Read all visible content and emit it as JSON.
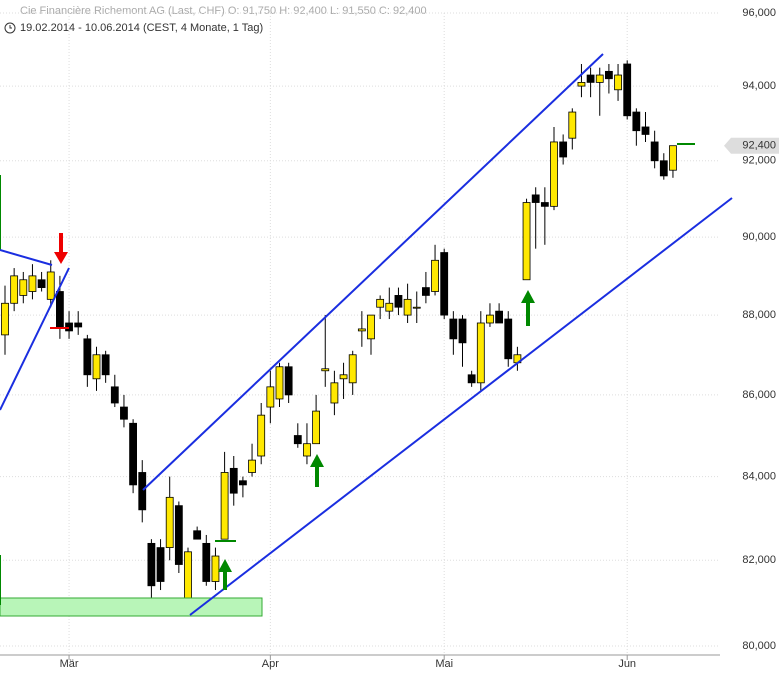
{
  "chart_data": {
    "type": "candlestick",
    "title": "Cie Financière Richemont AG (Last, CHF)  O: 91,750  H: 92,400  L: 91,550  C: 92,400",
    "subtitle": "19.02.2014 - 10.06.2014 (CEST, 4 Monate, 1 Tag)",
    "categories": [
      null,
      null,
      null,
      null,
      null,
      null,
      null,
      "Mär",
      null,
      null,
      null,
      null,
      null,
      null,
      null,
      null,
      null,
      null,
      null,
      null,
      null,
      null,
      null,
      null,
      null,
      null,
      null,
      null,
      null,
      "Apr",
      null,
      null,
      null,
      null,
      null,
      null,
      null,
      null,
      null,
      null,
      null,
      null,
      null,
      null,
      null,
      null,
      null,
      null,
      "Mai",
      null,
      null,
      null,
      null,
      null,
      null,
      null,
      null,
      null,
      null,
      null,
      null,
      null,
      null,
      null,
      null,
      null,
      null,
      null,
      "Jun",
      null,
      null,
      null,
      null,
      null
    ],
    "open": [
      87500,
      88300,
      88500,
      88600,
      88900,
      88400,
      88600,
      87800,
      87800,
      87400,
      86400,
      87000,
      86200,
      85700,
      85300,
      84100,
      82400,
      82300,
      82300,
      83300,
      81000,
      82700,
      82400,
      81500,
      82500,
      84200,
      83900,
      84100,
      84500,
      85700,
      85900,
      86700,
      85000,
      84500,
      84800,
      86600,
      85800,
      86400,
      86300,
      87600,
      87400,
      88200,
      88100,
      88500,
      88000,
      88200,
      88700,
      88600,
      89600,
      87900,
      87900,
      86500,
      86300,
      87800,
      88100,
      87900,
      86800,
      88900,
      91100,
      90900,
      90800,
      92500,
      92600,
      94000,
      94300,
      94100,
      94400,
      93900,
      94600,
      93300,
      92900,
      92500,
      92000,
      91750
    ],
    "high": [
      88750,
      89200,
      89100,
      89300,
      89100,
      89400,
      89000,
      88100,
      88100,
      87500,
      87200,
      87100,
      86500,
      86000,
      85400,
      84400,
      82500,
      82500,
      84000,
      83400,
      82300,
      82800,
      82600,
      82300,
      84600,
      84500,
      84000,
      84800,
      85800,
      86600,
      86800,
      86800,
      85300,
      85300,
      86000,
      88000,
      86600,
      86800,
      87100,
      88100,
      88000,
      88500,
      88700,
      88700,
      88800,
      88600,
      89100,
      89800,
      89700,
      88100,
      88000,
      86600,
      88100,
      88300,
      88300,
      88100,
      87200,
      91000,
      91300,
      91300,
      92900,
      92700,
      93400,
      94600,
      94500,
      94500,
      94600,
      94600,
      94700,
      93400,
      93300,
      92800,
      92200,
      92400
    ],
    "low": [
      87000,
      88100,
      88300,
      88400,
      88600,
      88200,
      87400,
      87400,
      87500,
      86200,
      86100,
      86300,
      85700,
      85200,
      83600,
      82900,
      80800,
      81300,
      82000,
      81700,
      80800,
      82500,
      81400,
      81300,
      82500,
      83300,
      83500,
      84000,
      84300,
      85300,
      85700,
      85800,
      84700,
      84300,
      84800,
      86200,
      85500,
      85900,
      86000,
      87200,
      87000,
      87900,
      87900,
      88000,
      87800,
      87800,
      88300,
      88500,
      87900,
      87000,
      86700,
      86200,
      86100,
      87700,
      87800,
      86700,
      86600,
      88900,
      89700,
      89800,
      90700,
      91900,
      92300,
      93700,
      93700,
      93200,
      93800,
      93600,
      93100,
      92400,
      92500,
      91800,
      91500,
      91550
    ],
    "close": [
      88300,
      89000,
      88900,
      89000,
      88700,
      89100,
      87700,
      87600,
      87700,
      86500,
      87000,
      86500,
      85800,
      85400,
      83800,
      83200,
      81400,
      81500,
      83500,
      81900,
      82200,
      82500,
      81500,
      82100,
      84100,
      83600,
      83800,
      84400,
      85500,
      86200,
      86700,
      86000,
      84800,
      84800,
      85600,
      86650,
      86300,
      86500,
      87000,
      87650,
      88000,
      88400,
      88300,
      88200,
      88400,
      88200,
      88500,
      89400,
      88000,
      87400,
      87300,
      86300,
      87800,
      88000,
      87800,
      86900,
      87000,
      90900,
      90900,
      90800,
      92500,
      92100,
      93300,
      94100,
      94100,
      94300,
      94200,
      94300,
      93200,
      92800,
      92700,
      92000,
      91600,
      92400
    ],
    "up_color": "#ffe800",
    "down_color": "#000000",
    "log_scale": true,
    "grid": true,
    "ylim": [
      80000,
      96000
    ],
    "yticks": [
      {
        "value": 80000,
        "label": "80,000"
      },
      {
        "value": 82000,
        "label": "82,000"
      },
      {
        "value": 84000,
        "label": "84,000"
      },
      {
        "value": 86000,
        "label": "86,000"
      },
      {
        "value": 88000,
        "label": "88,000"
      },
      {
        "value": 90000,
        "label": "90,000"
      },
      {
        "value": 92000,
        "label": "92,000"
      },
      {
        "value": 94000,
        "label": "94,000"
      },
      {
        "value": 96000,
        "label": "96,000"
      }
    ],
    "last_price": {
      "value": 92400,
      "label": "92,400"
    }
  }
}
